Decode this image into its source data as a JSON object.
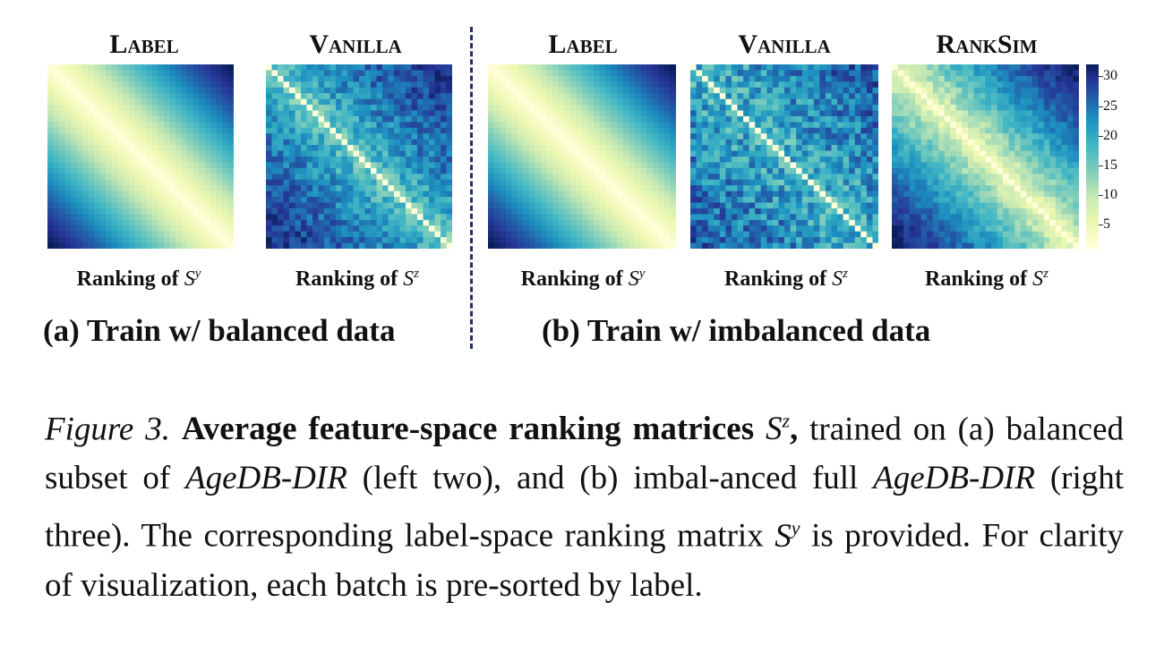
{
  "panels": [
    {
      "title": "Label",
      "xlabel_prefix": "Ranking of ",
      "matrix": "S",
      "superscript": "y",
      "kind": "label"
    },
    {
      "title": "Vanilla",
      "xlabel_prefix": "Ranking of ",
      "matrix": "S",
      "superscript": "z",
      "kind": "vanilla-balanced"
    },
    {
      "title": "Label",
      "xlabel_prefix": "Ranking of ",
      "matrix": "S",
      "superscript": "y",
      "kind": "label"
    },
    {
      "title": "Vanilla",
      "xlabel_prefix": "Ranking of ",
      "matrix": "S",
      "superscript": "z",
      "kind": "vanilla-imbalanced"
    },
    {
      "title": "RankSim",
      "xlabel_prefix": "Ranking of ",
      "matrix": "S",
      "superscript": "z",
      "kind": "ranksim"
    }
  ],
  "groups": {
    "a": "(a) Train w/ balanced data",
    "b": "(b) Train w/ imbalanced data"
  },
  "colorbar": {
    "ticks": [
      "30",
      "25",
      "20",
      "15",
      "10",
      "5"
    ],
    "tick_values": [
      30,
      25,
      20,
      15,
      10,
      5
    ],
    "range": [
      1,
      32
    ],
    "colormap": "YlGnBu"
  },
  "chart_data": {
    "type": "heatmap",
    "matrix_size": 32,
    "value_range": [
      1,
      32
    ],
    "colormap": "YlGnBu",
    "colorbar_ticks": [
      5,
      10,
      15,
      20,
      25,
      30
    ],
    "panels": [
      "Label",
      "Vanilla",
      "Label",
      "Vanilla",
      "RankSim"
    ]
  },
  "caption": {
    "fig_label": "Figure 3.",
    "bold_text": "Average feature-space ranking matrices",
    "bold_math": "S",
    "bold_math_sup": "z",
    "bold_comma": ",",
    "t1": "trained on (a) balanced subset of",
    "ds1": "AgeDB-DIR",
    "t2": "(left two), and (b) imbal-anced full",
    "ds2": "AgeDB-DIR",
    "t3": "(right three). The corresponding label-space ranking matrix",
    "math2": "S",
    "math2_sup": "y",
    "t4": "is provided. For clarity of visualization, each batch is pre-sorted by label."
  }
}
